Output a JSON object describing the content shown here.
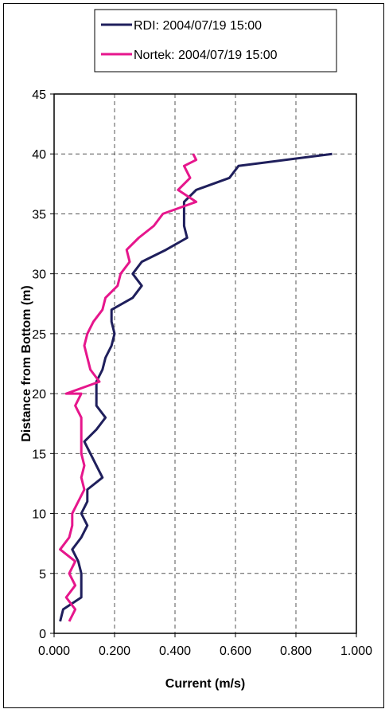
{
  "chart_data": {
    "type": "line",
    "title": "",
    "xlabel": "Current (m/s)",
    "ylabel": "Distance from Bottom (m)",
    "xlim": [
      0,
      1.0
    ],
    "ylim": [
      0,
      45
    ],
    "x_ticks": [
      "0.000",
      "0.200",
      "0.400",
      "0.600",
      "0.800",
      "1.000"
    ],
    "y_ticks": [
      "0",
      "5",
      "10",
      "15",
      "20",
      "25",
      "30",
      "35",
      "40",
      "45"
    ],
    "grid": true,
    "legend_position": "top",
    "series": [
      {
        "name": "RDI: 2004/07/19 15:00",
        "color": "#1f1f5c",
        "points": [
          [
            0.02,
            1
          ],
          [
            0.03,
            2
          ],
          [
            0.09,
            3
          ],
          [
            0.09,
            4
          ],
          [
            0.09,
            5
          ],
          [
            0.08,
            6
          ],
          [
            0.06,
            7
          ],
          [
            0.09,
            8
          ],
          [
            0.11,
            9
          ],
          [
            0.09,
            10
          ],
          [
            0.11,
            11
          ],
          [
            0.11,
            12
          ],
          [
            0.16,
            13
          ],
          [
            0.14,
            14
          ],
          [
            0.12,
            15
          ],
          [
            0.1,
            16
          ],
          [
            0.14,
            17
          ],
          [
            0.17,
            18
          ],
          [
            0.14,
            19
          ],
          [
            0.14,
            20
          ],
          [
            0.14,
            21
          ],
          [
            0.16,
            22
          ],
          [
            0.17,
            23
          ],
          [
            0.19,
            24
          ],
          [
            0.2,
            25
          ],
          [
            0.19,
            26
          ],
          [
            0.19,
            27
          ],
          [
            0.26,
            28
          ],
          [
            0.29,
            29
          ],
          [
            0.26,
            30
          ],
          [
            0.29,
            31
          ],
          [
            0.37,
            32
          ],
          [
            0.44,
            33
          ],
          [
            0.43,
            34
          ],
          [
            0.43,
            35
          ],
          [
            0.43,
            36
          ],
          [
            0.47,
            37
          ],
          [
            0.58,
            38
          ],
          [
            0.61,
            39
          ],
          [
            0.92,
            40
          ]
        ]
      },
      {
        "name": "Nortek: 2004/07/19 15:00",
        "color": "#e6168c",
        "points": [
          [
            0.05,
            1
          ],
          [
            0.07,
            2
          ],
          [
            0.04,
            3
          ],
          [
            0.07,
            4
          ],
          [
            0.05,
            5
          ],
          [
            0.07,
            6
          ],
          [
            0.02,
            7
          ],
          [
            0.05,
            8
          ],
          [
            0.06,
            9
          ],
          [
            0.06,
            10
          ],
          [
            0.08,
            11
          ],
          [
            0.1,
            12
          ],
          [
            0.09,
            13
          ],
          [
            0.1,
            14
          ],
          [
            0.09,
            15
          ],
          [
            0.09,
            16
          ],
          [
            0.09,
            17
          ],
          [
            0.09,
            18
          ],
          [
            0.07,
            19
          ],
          [
            0.09,
            20
          ],
          [
            0.04,
            20
          ],
          [
            0.15,
            21
          ],
          [
            0.12,
            22
          ],
          [
            0.11,
            23
          ],
          [
            0.1,
            24
          ],
          [
            0.11,
            25
          ],
          [
            0.13,
            26
          ],
          [
            0.16,
            27
          ],
          [
            0.17,
            28
          ],
          [
            0.21,
            29
          ],
          [
            0.22,
            30
          ],
          [
            0.25,
            31
          ],
          [
            0.24,
            32
          ],
          [
            0.28,
            33
          ],
          [
            0.33,
            34
          ],
          [
            0.36,
            35
          ],
          [
            0.47,
            36
          ],
          [
            0.41,
            37
          ],
          [
            0.45,
            38
          ],
          [
            0.43,
            39
          ],
          [
            0.47,
            39.5
          ],
          [
            0.46,
            40
          ]
        ]
      }
    ]
  }
}
